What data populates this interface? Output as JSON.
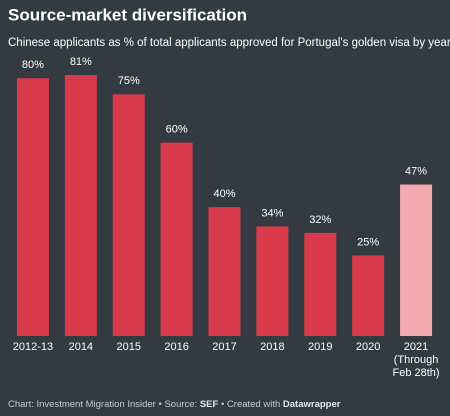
{
  "chart_data": {
    "type": "bar",
    "title": "Source-market diversification",
    "subtitle": "Chinese applicants as % of total applicants approved for Portugal's golden visa by year",
    "categories": [
      "2012-13",
      "2014",
      "2015",
      "2016",
      "2017",
      "2018",
      "2019",
      "2020",
      "2021 (Through Feb 28th)"
    ],
    "values": [
      80,
      81,
      75,
      60,
      40,
      34,
      32,
      25,
      47
    ],
    "value_labels": [
      "80%",
      "81%",
      "75%",
      "60%",
      "40%",
      "34%",
      "32%",
      "25%",
      "47%"
    ],
    "colors": [
      "#d93a4b",
      "#d93a4b",
      "#d93a4b",
      "#d93a4b",
      "#d93a4b",
      "#d93a4b",
      "#d93a4b",
      "#d93a4b",
      "#f2a9b0"
    ],
    "ylim": [
      0,
      90
    ],
    "footer": [
      "Chart: Investment Migration Insider • Source:",
      "SEF",
      "• Created with",
      "Datawrapper"
    ]
  }
}
